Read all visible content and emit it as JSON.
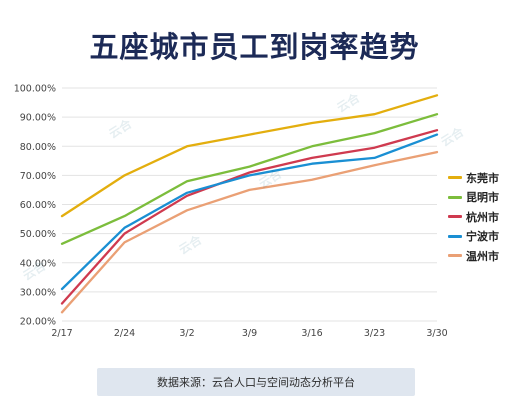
{
  "chart_data": {
    "type": "line",
    "title": "五座城市员工到岗率趋势",
    "categories": [
      "2/17",
      "2/24",
      "3/2",
      "3/9",
      "3/16",
      "3/23",
      "3/30"
    ],
    "ylim": [
      20,
      100
    ],
    "yticks": [
      "20.00%",
      "30.00%",
      "40.00%",
      "50.00%",
      "60.00%",
      "70.00%",
      "80.00%",
      "90.00%",
      "100.00%"
    ],
    "grid": true,
    "legend_position": "right",
    "series": [
      {
        "name": "东莞市",
        "color": "#e3ae0e",
        "values": [
          56,
          70,
          80,
          84,
          88,
          91,
          97.5
        ]
      },
      {
        "name": "昆明市",
        "color": "#7cbd3c",
        "values": [
          46.5,
          56,
          68,
          73,
          80,
          84.5,
          91
        ]
      },
      {
        "name": "杭州市",
        "color": "#cf3a4f",
        "values": [
          26,
          50,
          63,
          71,
          76,
          79.5,
          85.5
        ]
      },
      {
        "name": "宁波市",
        "color": "#1a8fd3",
        "values": [
          31,
          52,
          64,
          70,
          74,
          76,
          84
        ]
      },
      {
        "name": "温州市",
        "color": "#eaa075",
        "values": [
          23,
          47,
          58,
          65,
          68.5,
          73.5,
          78
        ]
      }
    ]
  },
  "watermark": "云合",
  "source_note": "数据来源：云合人口与空间动态分析平台"
}
